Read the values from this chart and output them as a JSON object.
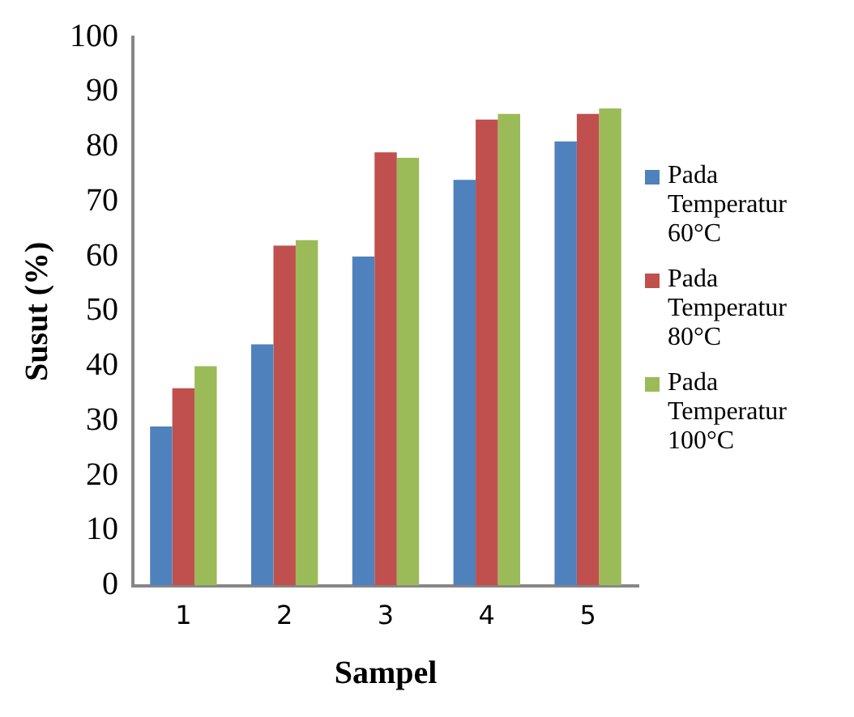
{
  "chart_data": {
    "type": "bar",
    "xlabel": "Sampel",
    "ylabel": "Susut (%)",
    "categories": [
      "1",
      "2",
      "3",
      "4",
      "5"
    ],
    "series": [
      {
        "name": "Pada Temperatur 60°C",
        "color": "#4f81bd",
        "values": [
          29,
          44,
          60,
          74,
          81
        ]
      },
      {
        "name": "Pada Temperatur 80°C",
        "color": "#c0504d",
        "values": [
          36,
          62,
          79,
          85,
          86
        ]
      },
      {
        "name": "Pada Temperatur 100°C",
        "color": "#9bbb59",
        "values": [
          40,
          63,
          78,
          86,
          87
        ]
      }
    ],
    "ylim": [
      0,
      100
    ],
    "yticks": [
      0,
      10,
      20,
      30,
      40,
      50,
      60,
      70,
      80,
      90,
      100
    ],
    "grid": false,
    "legend": "right"
  }
}
